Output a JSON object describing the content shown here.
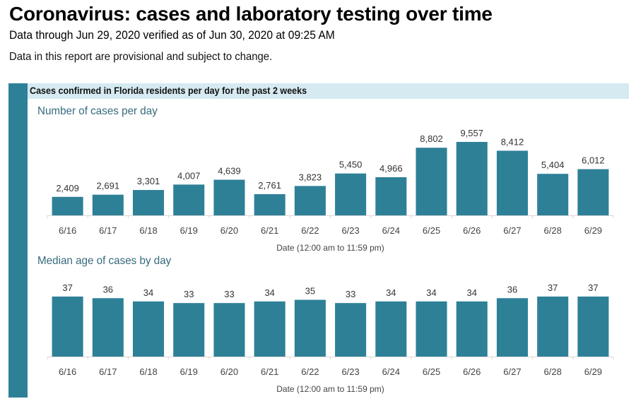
{
  "header": {
    "title": "Coronavirus: cases and laboratory testing over time",
    "subtitle": "Data through Jun 29, 2020 verified as of Jun 30, 2020 at 09:25 AM",
    "note": "Data in this report are provisional and subject to change."
  },
  "banner": {
    "text": "Cases confirmed in Florida residents per day for the past 2 weeks"
  },
  "colors": {
    "bar": "#2e8097",
    "banner_bg": "#d5eaf1",
    "section_title": "#366a7c"
  },
  "chart_data": [
    {
      "type": "bar",
      "title": "Number of cases per day",
      "xlabel": "Date (12:00 am to 11:59 pm)",
      "ylabel": "",
      "categories": [
        "6/16",
        "6/17",
        "6/18",
        "6/19",
        "6/20",
        "6/21",
        "6/22",
        "6/23",
        "6/24",
        "6/25",
        "6/26",
        "6/27",
        "6/28",
        "6/29"
      ],
      "values": [
        2409,
        2691,
        3301,
        4007,
        4639,
        2761,
        3823,
        5450,
        4966,
        8802,
        9557,
        8412,
        5404,
        6012
      ],
      "value_labels": [
        "2,409",
        "2,691",
        "3,301",
        "4,007",
        "4,639",
        "2,761",
        "3,823",
        "5,450",
        "4,966",
        "8,802",
        "9,557",
        "8,412",
        "5,404",
        "6,012"
      ],
      "ylim": [
        0,
        9557
      ],
      "grid": false,
      "legend": "none"
    },
    {
      "type": "bar",
      "title": "Median age of cases by day",
      "xlabel": "Date (12:00 am to 11:59 pm)",
      "ylabel": "",
      "categories": [
        "6/16",
        "6/17",
        "6/18",
        "6/19",
        "6/20",
        "6/21",
        "6/22",
        "6/23",
        "6/24",
        "6/25",
        "6/26",
        "6/27",
        "6/28",
        "6/29"
      ],
      "values": [
        37,
        36,
        34,
        33,
        33,
        34,
        35,
        33,
        34,
        34,
        34,
        36,
        37,
        37
      ],
      "value_labels": [
        "37",
        "36",
        "34",
        "33",
        "33",
        "34",
        "35",
        "33",
        "34",
        "34",
        "34",
        "36",
        "37",
        "37"
      ],
      "ylim": [
        0,
        37
      ],
      "grid": false,
      "legend": "none"
    }
  ]
}
